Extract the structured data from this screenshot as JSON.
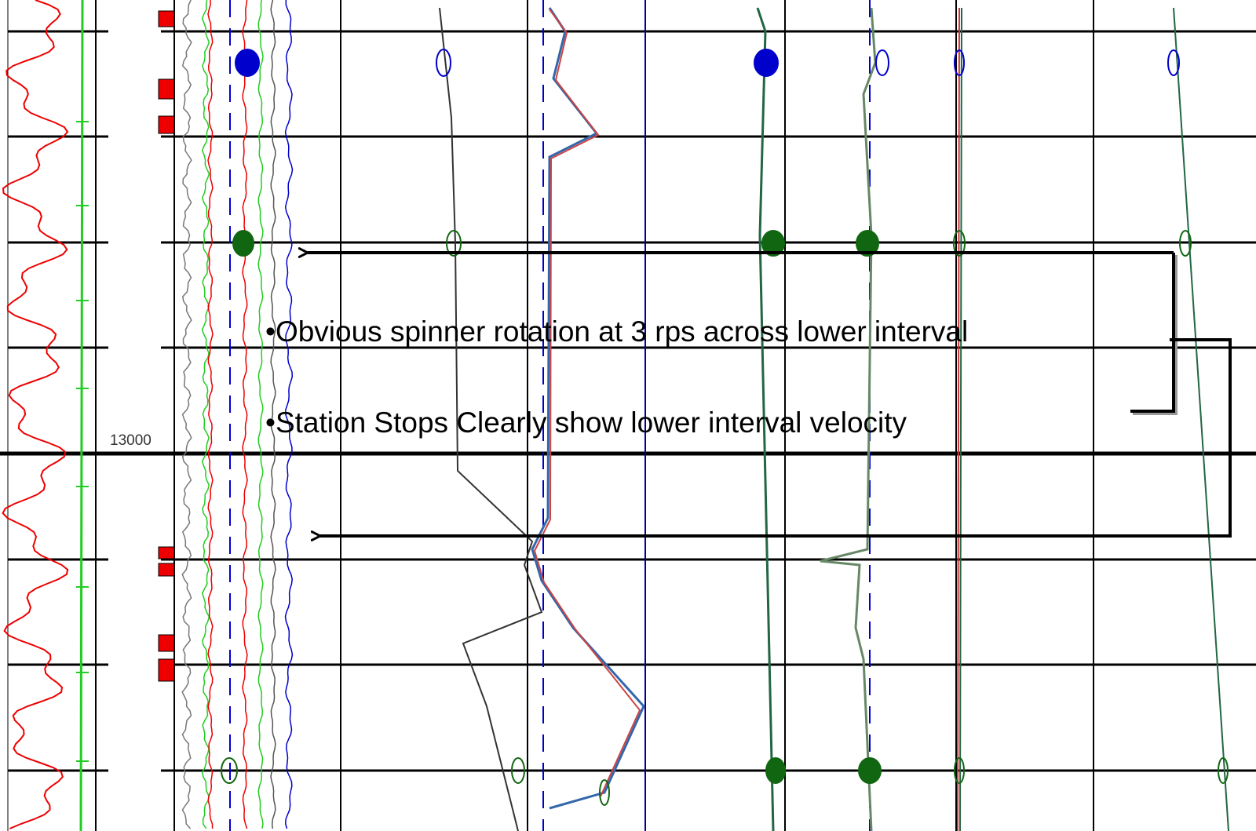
{
  "depth_label": "13000",
  "annotations": [
    "•Obvious spinner rotation at 3 rps across lower interval",
    "•Station Stops Clearly show lower interval velocity"
  ]
}
